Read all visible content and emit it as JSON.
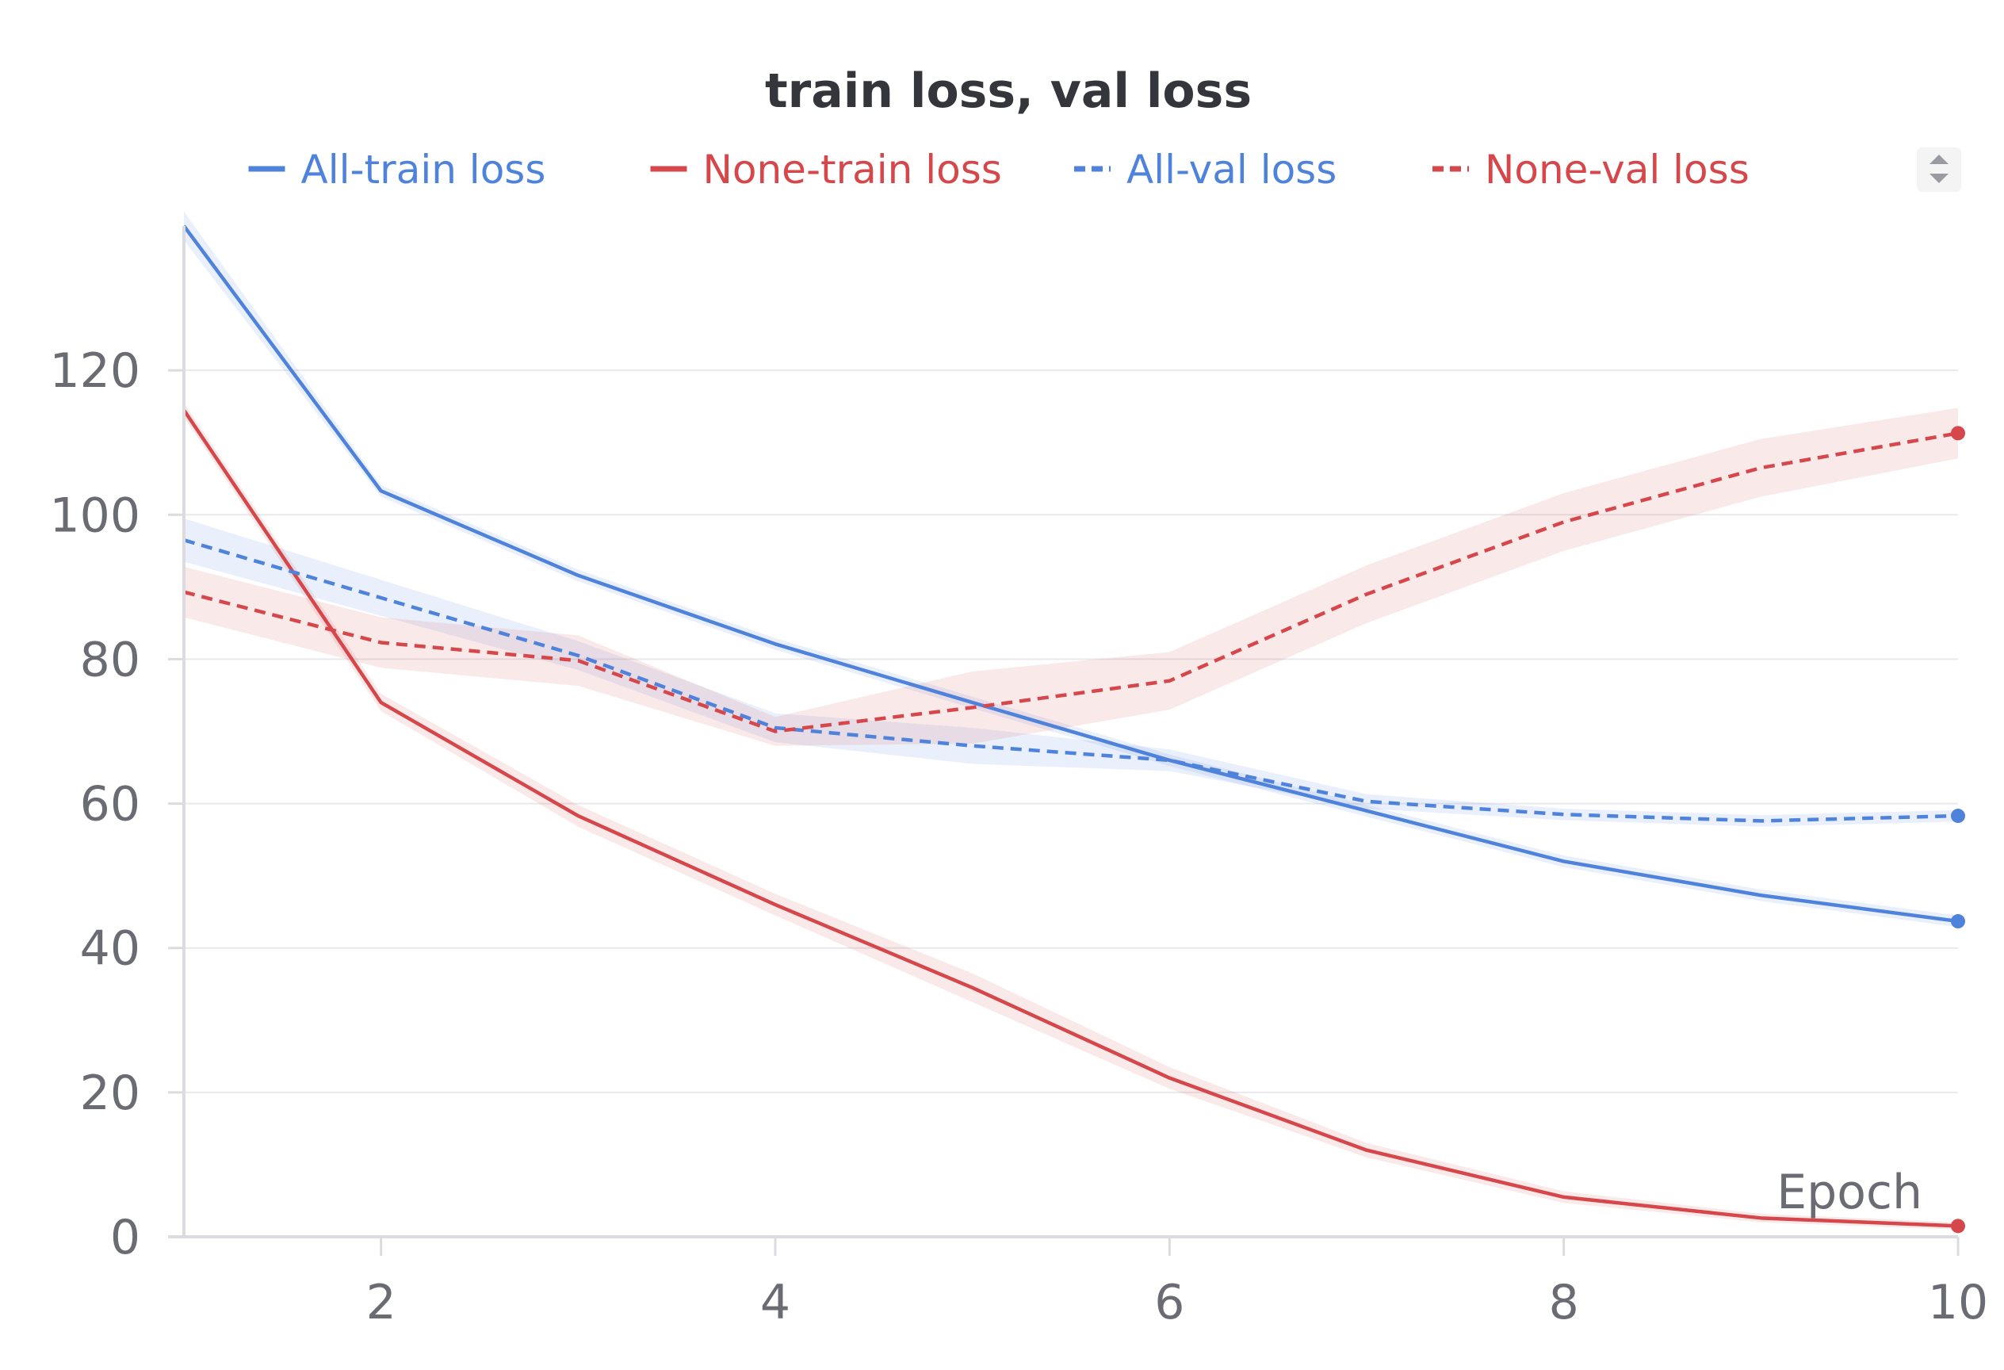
{
  "chart_data": {
    "type": "line",
    "title": "train loss, val loss",
    "xlabel": "Epoch",
    "ylabel": "",
    "x": [
      1,
      2,
      3,
      4,
      5,
      6,
      7,
      8,
      9,
      10
    ],
    "xlim": [
      1,
      10
    ],
    "ylim": [
      0,
      140
    ],
    "xticks": [
      "2",
      "4",
      "6",
      "8",
      "10"
    ],
    "xtick_values": [
      2,
      4,
      6,
      8,
      10
    ],
    "yticks": [
      "0",
      "20",
      "40",
      "60",
      "80",
      "100",
      "120"
    ],
    "ytick_values": [
      0,
      20,
      40,
      60,
      80,
      100,
      120
    ],
    "grid": true,
    "legend_position": "top",
    "series": [
      {
        "name": "All-train loss",
        "color": "#4f83db",
        "dash": false,
        "values": [
          140,
          103.3,
          91.6,
          82.1,
          74,
          66,
          59,
          52,
          47.3,
          43.7
        ],
        "band": [
          2,
          0.8,
          0.8,
          0.8,
          0.8,
          0.8,
          0.8,
          0.8,
          0.8,
          0.8
        ]
      },
      {
        "name": "None-train loss",
        "color": "#d5474a",
        "dash": false,
        "values": [
          114.5,
          74,
          58.3,
          46,
          34.5,
          22,
          12,
          5.5,
          2.6,
          1.5
        ],
        "band": [
          1,
          1.2,
          1.5,
          1.5,
          2,
          1.5,
          1,
          0.8,
          0.6,
          0.5
        ]
      },
      {
        "name": "All-val loss",
        "color": "#4f83db",
        "dash": true,
        "values": [
          96.5,
          88.5,
          80.5,
          70.5,
          68,
          66,
          60.3,
          58.5,
          57.6,
          58.3
        ],
        "band": [
          3,
          2.5,
          2,
          2,
          2.5,
          1.5,
          1,
          0.8,
          0.8,
          0.8
        ]
      },
      {
        "name": "None-val loss",
        "color": "#d5474a",
        "dash": true,
        "values": [
          89.3,
          82.3,
          79.8,
          70,
          73.3,
          77,
          89,
          99,
          106.5,
          111.3
        ],
        "band": [
          3.5,
          3.5,
          3.5,
          2,
          5,
          4,
          4,
          4,
          4,
          3.5
        ]
      }
    ]
  }
}
